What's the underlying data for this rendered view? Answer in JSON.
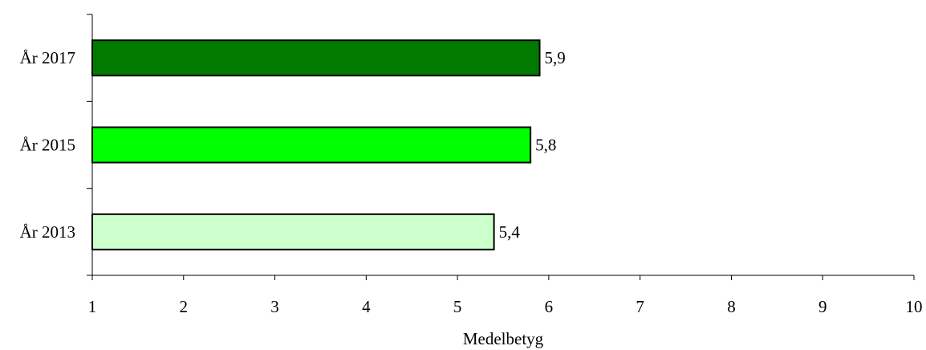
{
  "chart_data": {
    "type": "bar",
    "orientation": "horizontal",
    "categories": [
      "År 2017",
      "År 2015",
      "År 2013"
    ],
    "values": [
      5.9,
      5.8,
      5.4
    ],
    "value_labels": [
      "5,9",
      "5,8",
      "5,4"
    ],
    "bar_colors": [
      "#007a00",
      "#00ff00",
      "#ccffcc"
    ],
    "xlabel": "Medelbetyg",
    "xlim": [
      1,
      10
    ],
    "xticks": [
      1,
      2,
      3,
      4,
      5,
      6,
      7,
      8,
      9,
      10
    ],
    "xtick_labels": [
      "1",
      "2",
      "3",
      "4",
      "5",
      "6",
      "7",
      "8",
      "9",
      "10"
    ],
    "grid": false,
    "legend": "none"
  }
}
